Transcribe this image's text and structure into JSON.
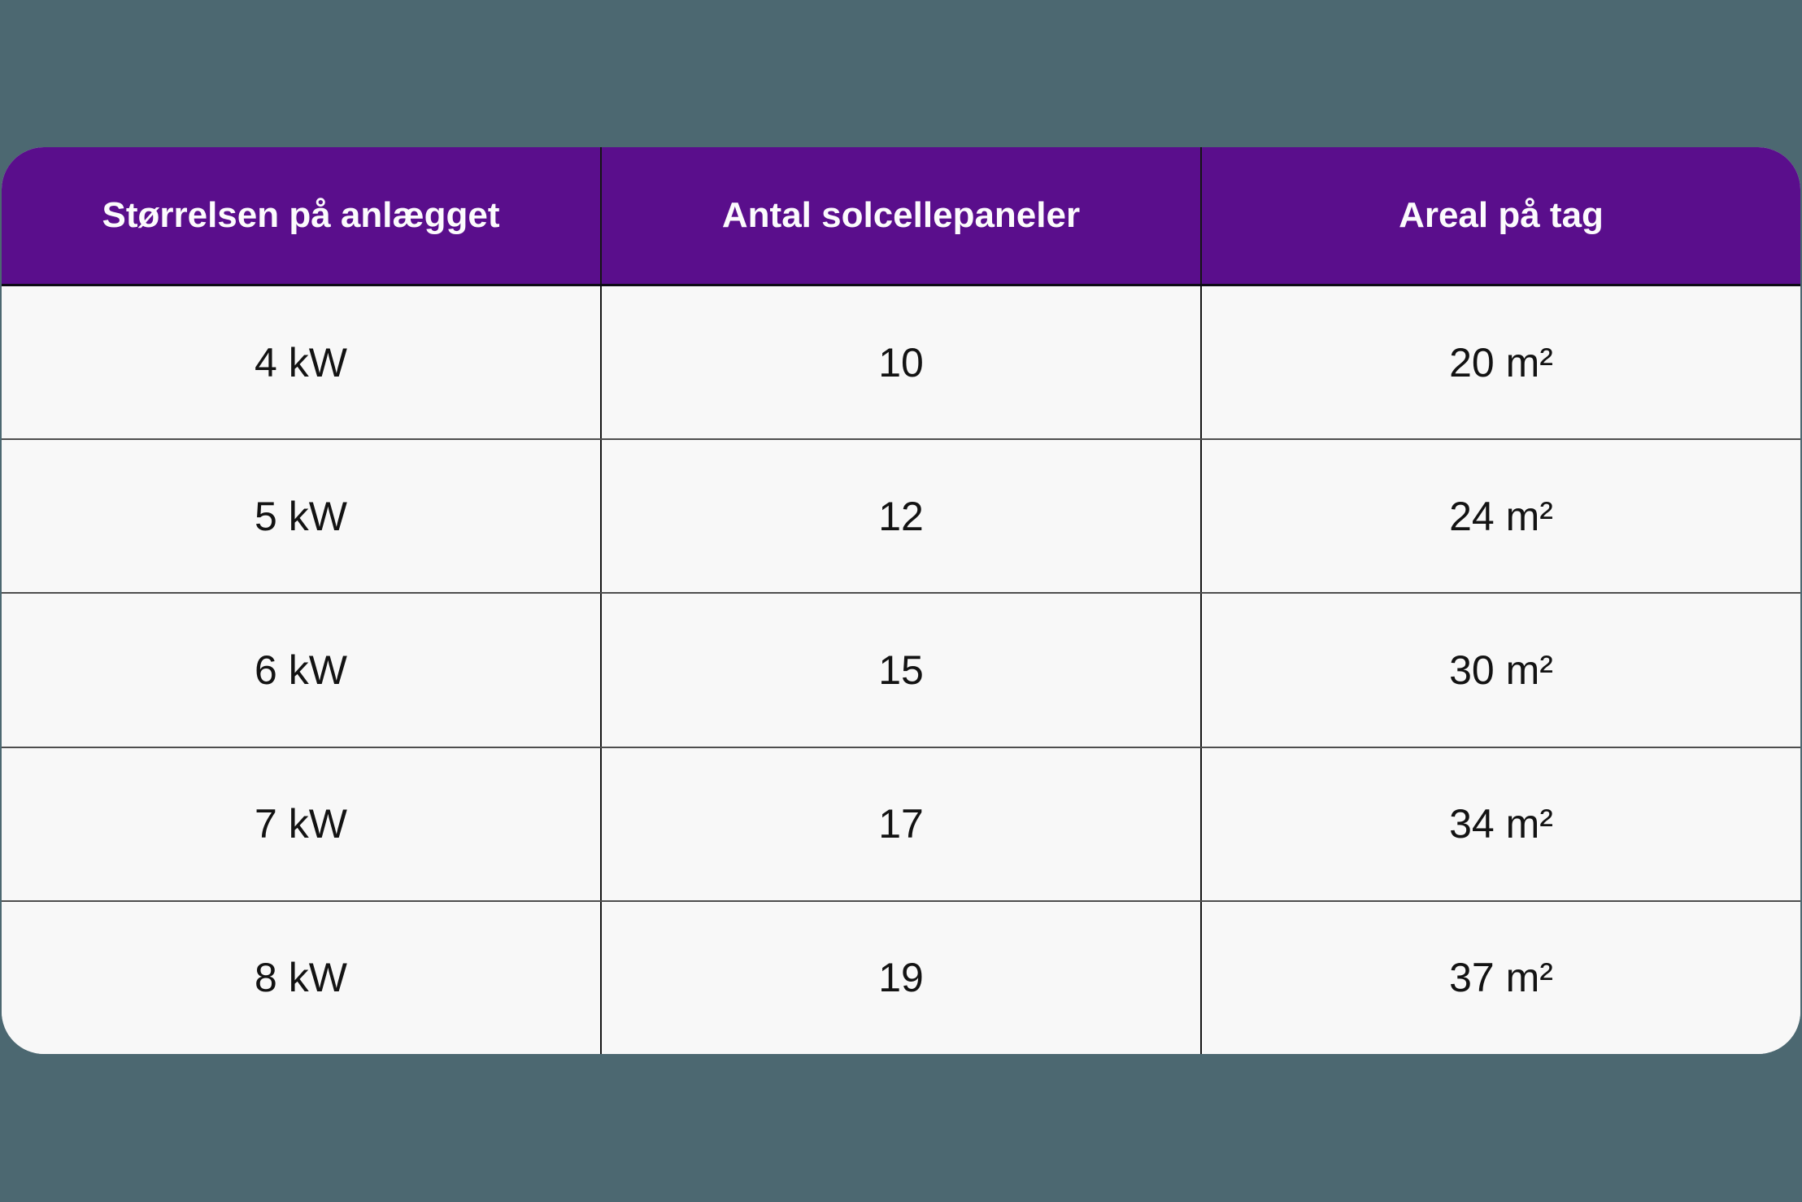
{
  "colors": {
    "page-bg": "#4C6871",
    "header-bg": "#5A0E8C",
    "header-text": "#FCFBFD",
    "row-bg": "#F8F8F8",
    "body-text": "#131313",
    "col-divider": "#151515",
    "row-divider": "#4E4E4E",
    "header-underline": "#0D0A16"
  },
  "chart_data": {
    "type": "table",
    "columns": [
      "Størrelsen på anlægget",
      "Antal solcellepaneler",
      "Areal på tag"
    ],
    "rows": [
      [
        "4 kW",
        "10",
        "20 m²"
      ],
      [
        "5 kW",
        "12",
        "24 m²"
      ],
      [
        "6 kW",
        "15",
        "30 m²"
      ],
      [
        "7 kW",
        "17",
        "34 m²"
      ],
      [
        "8 kW",
        "19",
        "37 m²"
      ]
    ],
    "layout_hints": {
      "header_style": "bold white on purple, rounded outer corners",
      "body_style": "centered black text on off-white rows",
      "grid": "full-height column dividers, horizontal row separators"
    }
  }
}
